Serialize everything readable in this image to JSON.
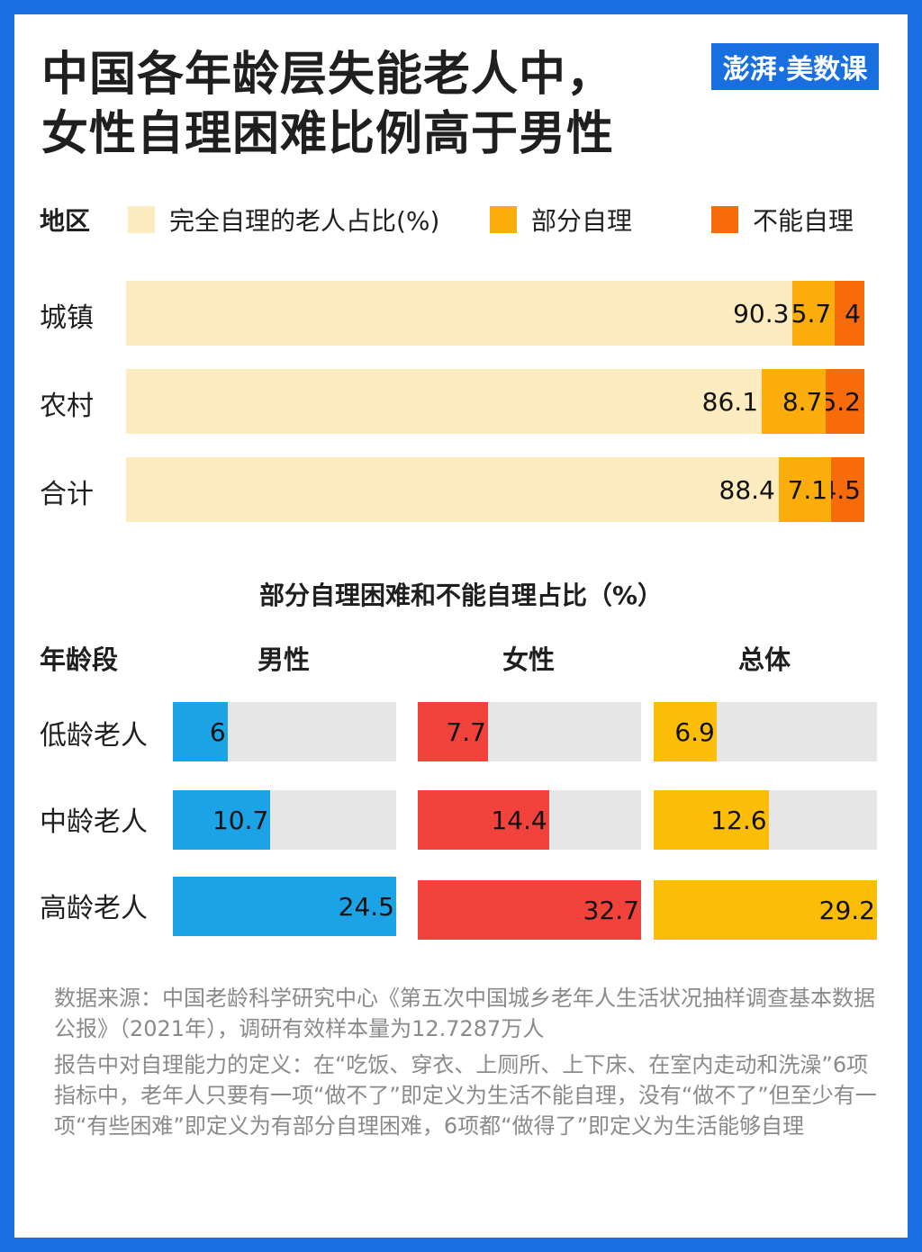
{
  "title_line1": "中国各年龄层失能老人中，",
  "title_line2": "女性自理困难比例高于男性",
  "logo_text": "澎湃·美数课",
  "colors": {
    "frame": "#1a6fe0",
    "full": "#fcecc0",
    "partial": "#fbad0b",
    "unable": "#f76b0a",
    "male": "#1ba3e6",
    "female": "#f2423c",
    "overall": "#fbbd07",
    "track": "#e6e6e6"
  },
  "legend": {
    "region_label": "地区",
    "full": "完全自理的老人占比(%)",
    "partial": "部分自理",
    "unable": "不能自理"
  },
  "section_title": "部分自理困难和不能自理占比（%）",
  "age_columns": {
    "age_header": "年龄段",
    "male": "男性",
    "female": "女性",
    "overall": "总体"
  },
  "chart_data": [
    {
      "type": "bar",
      "stacked": true,
      "orientation": "horizontal",
      "categories": [
        "城镇",
        "农村",
        "合计"
      ],
      "series": [
        {
          "name": "完全自理的老人占比(%)",
          "values": [
            90.3,
            86.1,
            88.4
          ],
          "labels": [
            "90.3",
            "86.1",
            "88.4"
          ]
        },
        {
          "name": "部分自理",
          "values": [
            5.7,
            8.7,
            7.1
          ],
          "labels": [
            "5.7",
            "8.7",
            "7.1"
          ]
        },
        {
          "name": "不能自理",
          "values": [
            4,
            5.2,
            4.5
          ],
          "labels": [
            "4",
            "5.2",
            "4.5"
          ]
        }
      ],
      "xlim": [
        0,
        100
      ]
    },
    {
      "type": "bar",
      "orientation": "horizontal",
      "title": "部分自理困难和不能自理占比（%）",
      "categories": [
        "低龄老人",
        "中龄老人",
        "高龄老人"
      ],
      "series": [
        {
          "name": "男性",
          "values": [
            6,
            10.7,
            24.5
          ],
          "labels": [
            "6",
            "10.7",
            "24.5"
          ]
        },
        {
          "name": "女性",
          "values": [
            7.7,
            14.4,
            32.7
          ],
          "labels": [
            "7.7",
            "14.4",
            "32.7"
          ]
        },
        {
          "name": "总体",
          "values": [
            6.9,
            12.6,
            29.2
          ],
          "labels": [
            "6.9",
            "12.6",
            "29.2"
          ]
        }
      ]
    }
  ],
  "notes": {
    "source": "数据来源：中国老龄科学研究中心《第五次中国城乡老年人生活状况抽样调查基本数据公报》（2021年），调研有效样本量为12.7287万人",
    "definition": "报告中对自理能力的定义：在“吃饭、穿衣、上厕所、上下床、在室内走动和洗澡”6项指标中，老年人只要有一项“做不了”即定义为生活不能自理，没有“做不了”但至少有一项“有些困难”即定义为有部分自理困难，6项都“做得了”即定义为生活能够自理"
  }
}
